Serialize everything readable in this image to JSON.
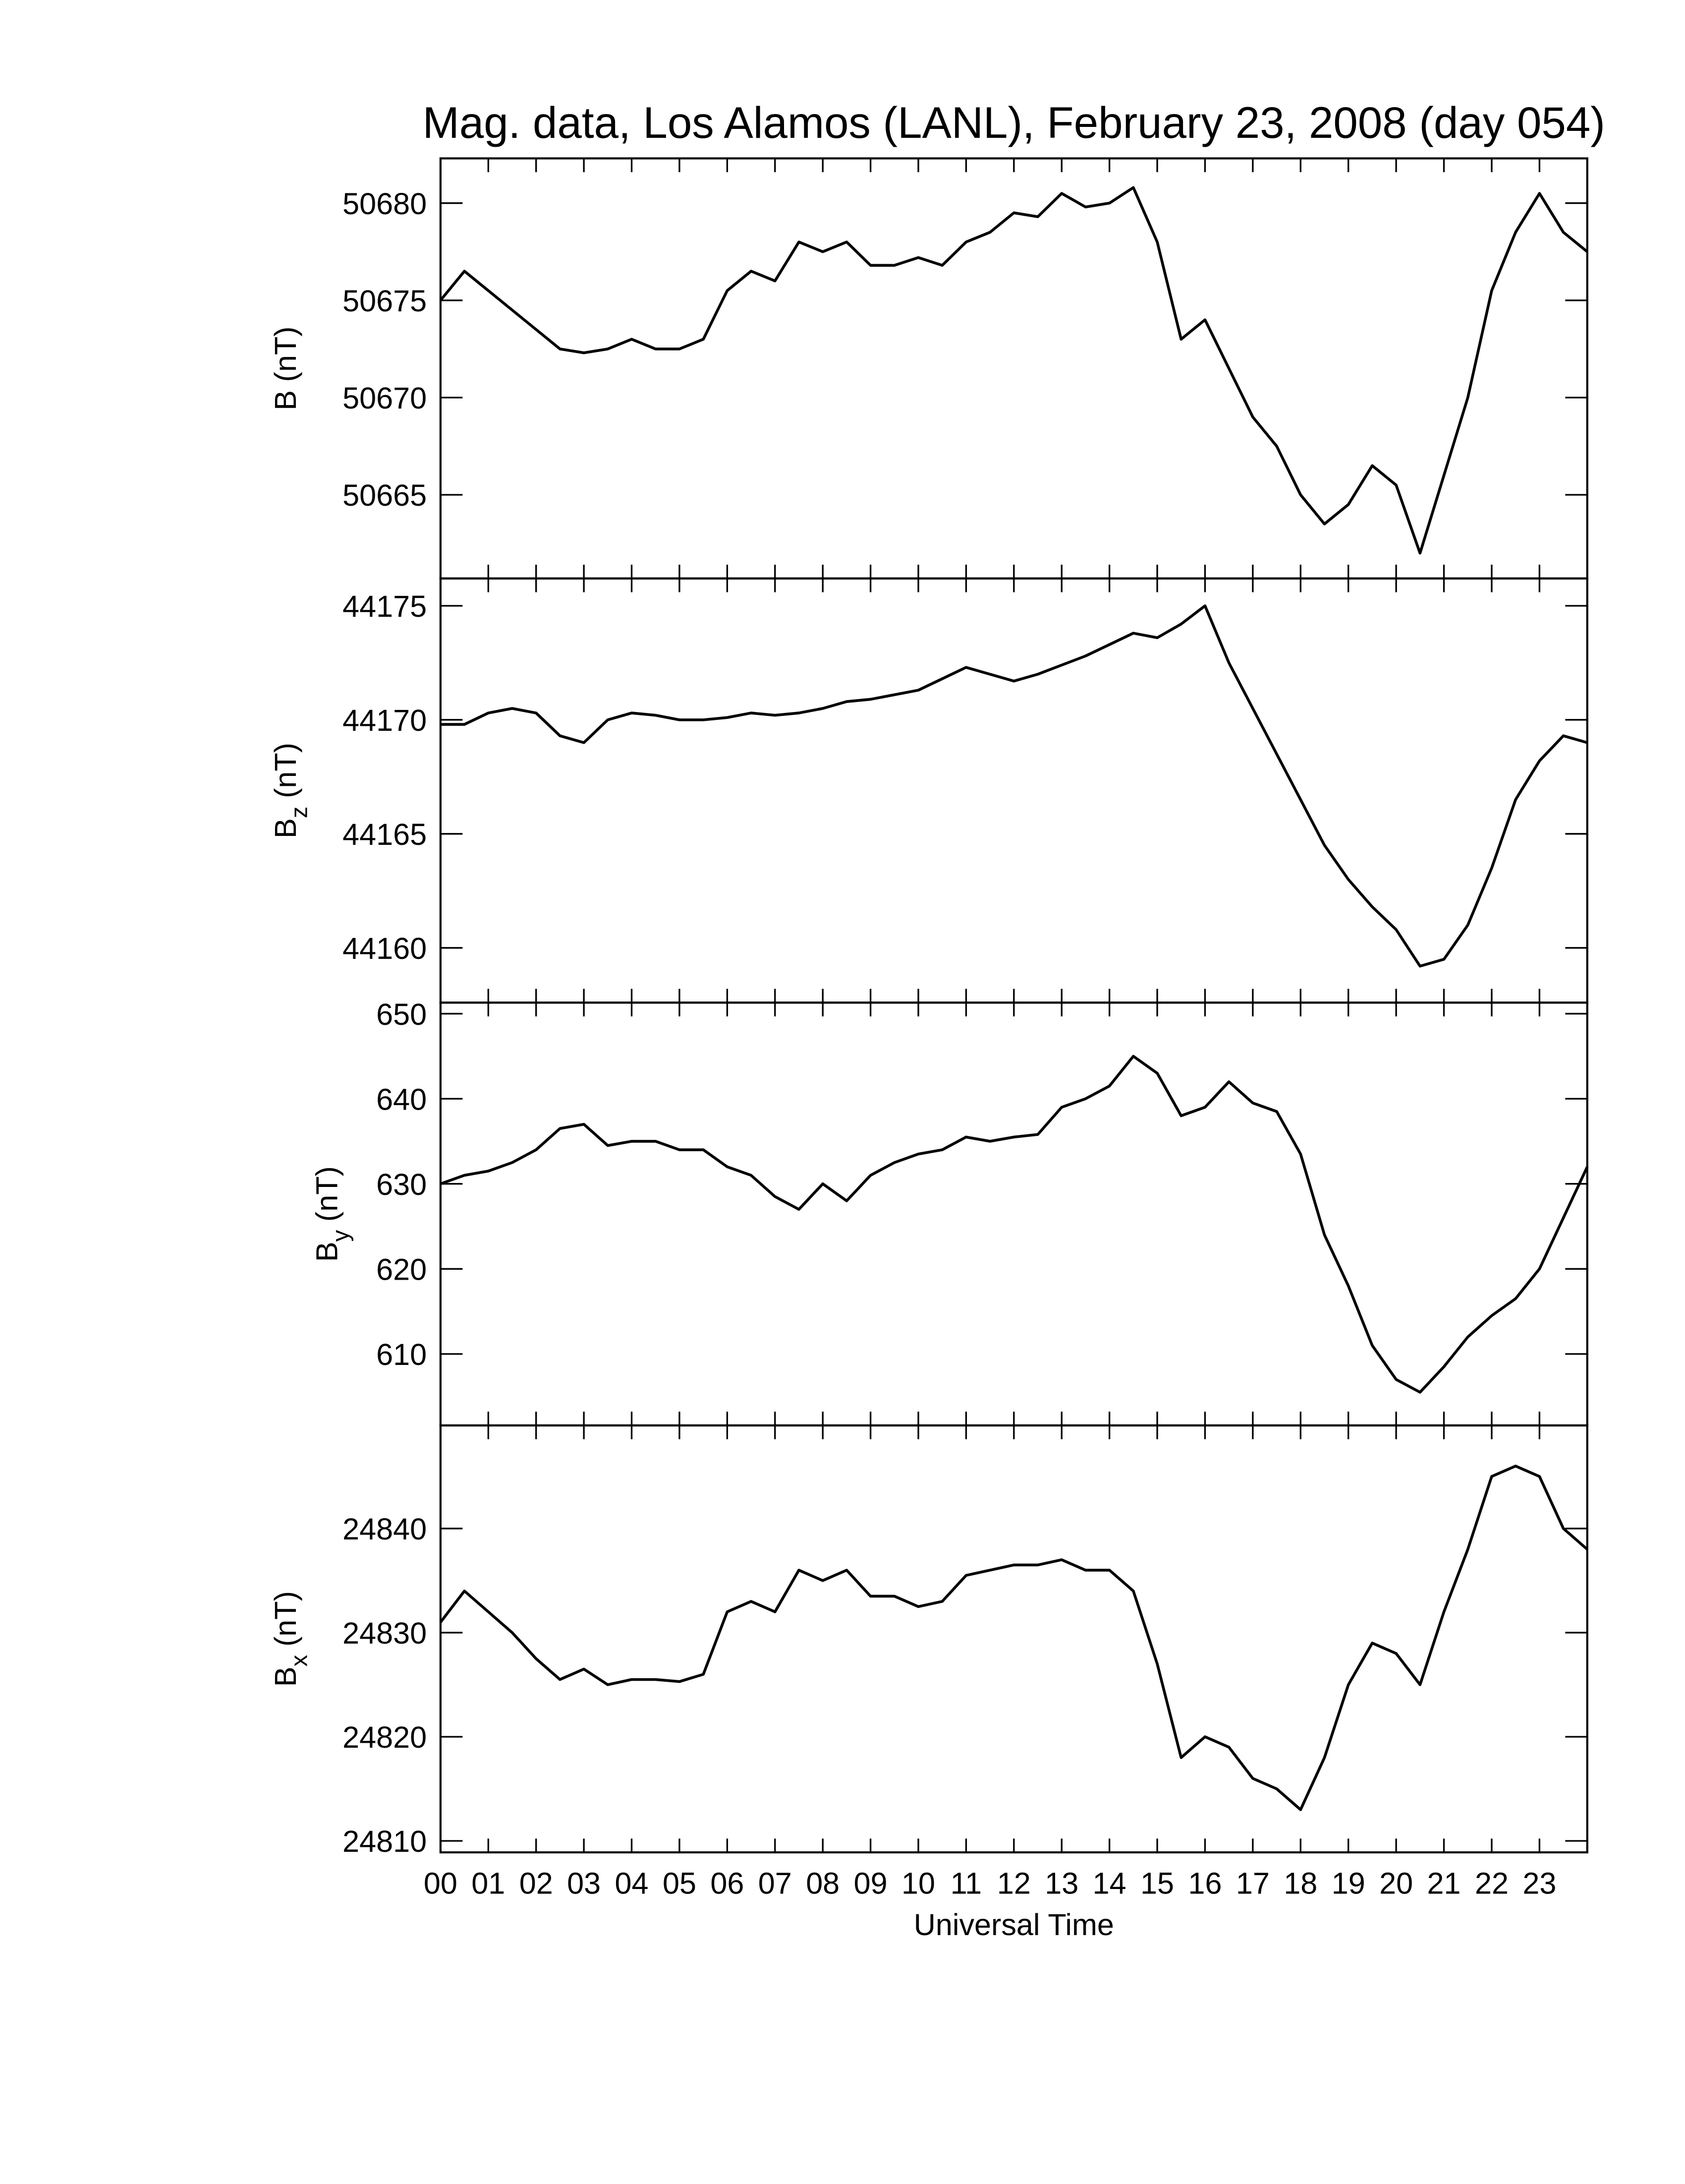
{
  "chart_data": [
    {
      "type": "line",
      "title": "Mag. data, Los Alamos (LANL), February 23, 2008 (day 054)",
      "ylabel": {
        "base": "B",
        "unit": "(nT)"
      },
      "color": "#000000",
      "x": [
        0,
        0.5,
        1,
        1.5,
        2,
        2.5,
        3,
        3.5,
        4,
        4.5,
        5,
        5.5,
        6,
        6.5,
        7,
        7.5,
        8,
        8.5,
        9,
        9.5,
        10,
        10.5,
        11,
        11.5,
        12,
        12.5,
        13,
        13.5,
        14,
        14.5,
        15,
        15.5,
        16,
        16.5,
        17,
        17.5,
        18,
        18.5,
        19,
        19.5,
        20,
        20.5,
        21,
        21.5,
        22,
        22.5,
        23,
        23.5,
        24
      ],
      "values": [
        50675,
        50676.5,
        50675.5,
        50674.5,
        50673.5,
        50672.5,
        50672.3,
        50672.5,
        50673,
        50672.5,
        50672.5,
        50673,
        50675.5,
        50676.5,
        50676,
        50678,
        50677.5,
        50678,
        50676.8,
        50676.8,
        50677.2,
        50676.8,
        50678,
        50678.5,
        50679.5,
        50679.3,
        50680.5,
        50679.8,
        50680,
        50680.8,
        50678,
        50673,
        50674,
        50671.5,
        50669,
        50667.5,
        50665,
        50663.5,
        50664.5,
        50666.5,
        50665.5,
        50662,
        50666,
        50670,
        50675.5,
        50678.5,
        50680.5,
        50678.5,
        50677.5
      ],
      "xlim": [
        0,
        24
      ],
      "xticks": [
        0,
        1,
        2,
        3,
        4,
        5,
        6,
        7,
        8,
        9,
        10,
        11,
        12,
        13,
        14,
        15,
        16,
        17,
        18,
        19,
        20,
        21,
        22,
        23
      ],
      "ylim": [
        50660.7,
        50682.3
      ],
      "yticks": [
        50665,
        50670,
        50675,
        50680
      ]
    },
    {
      "type": "line",
      "ylabel": {
        "base": "B",
        "sub": "z",
        "unit": "(nT)"
      },
      "color": "#000000",
      "x": [
        0,
        0.5,
        1,
        1.5,
        2,
        2.5,
        3,
        3.5,
        4,
        4.5,
        5,
        5.5,
        6,
        6.5,
        7,
        7.5,
        8,
        8.5,
        9,
        9.5,
        10,
        10.5,
        11,
        11.5,
        12,
        12.5,
        13,
        13.5,
        14,
        14.5,
        15,
        15.5,
        16,
        16.5,
        17,
        17.5,
        18,
        18.5,
        19,
        19.5,
        20,
        20.5,
        21,
        21.5,
        22,
        22.5,
        23,
        23.5,
        24
      ],
      "values": [
        44169.8,
        44169.8,
        44170.3,
        44170.5,
        44170.3,
        44169.3,
        44169,
        44170,
        44170.3,
        44170.2,
        44170,
        44170,
        44170.1,
        44170.3,
        44170.2,
        44170.3,
        44170.5,
        44170.8,
        44170.9,
        44171.1,
        44171.3,
        44171.8,
        44172.3,
        44172,
        44171.7,
        44172,
        44172.4,
        44172.8,
        44173.3,
        44173.8,
        44173.6,
        44174.2,
        44175,
        44172.5,
        44170.5,
        44168.5,
        44166.5,
        44164.5,
        44163,
        44161.8,
        44160.8,
        44159.2,
        44159.5,
        44161,
        44163.5,
        44166.5,
        44168.2,
        44169.3,
        44169
      ],
      "xlim": [
        0,
        24
      ],
      "xticks": [
        0,
        1,
        2,
        3,
        4,
        5,
        6,
        7,
        8,
        9,
        10,
        11,
        12,
        13,
        14,
        15,
        16,
        17,
        18,
        19,
        20,
        21,
        22,
        23
      ],
      "ylim": [
        44157.6,
        44176.2
      ],
      "yticks": [
        44160,
        44165,
        44170,
        44175
      ]
    },
    {
      "type": "line",
      "ylabel": {
        "base": "B",
        "sub": "y",
        "unit": "(nT)"
      },
      "color": "#000000",
      "x": [
        0,
        0.5,
        1,
        1.5,
        2,
        2.5,
        3,
        3.5,
        4,
        4.5,
        5,
        5.5,
        6,
        6.5,
        7,
        7.5,
        8,
        8.5,
        9,
        9.5,
        10,
        10.5,
        11,
        11.5,
        12,
        12.5,
        13,
        13.5,
        14,
        14.5,
        15,
        15.5,
        16,
        16.5,
        17,
        17.5,
        18,
        18.5,
        19,
        19.5,
        20,
        20.5,
        21,
        21.5,
        22,
        22.5,
        23,
        23.5,
        24
      ],
      "values": [
        630,
        631,
        631.5,
        632.5,
        634,
        636.5,
        637,
        634.5,
        635,
        635,
        634,
        634,
        632,
        631,
        628.5,
        627,
        630,
        628,
        631,
        632.5,
        633.5,
        634,
        635.5,
        635,
        635.5,
        635.8,
        639,
        640,
        641.5,
        645,
        643,
        638,
        639,
        642,
        639.5,
        638.5,
        633.5,
        624,
        618,
        611,
        607,
        605.5,
        608.5,
        612,
        614.5,
        616.5,
        620,
        626,
        632
      ],
      "xlim": [
        0,
        24
      ],
      "xticks": [
        0,
        1,
        2,
        3,
        4,
        5,
        6,
        7,
        8,
        9,
        10,
        11,
        12,
        13,
        14,
        15,
        16,
        17,
        18,
        19,
        20,
        21,
        22,
        23
      ],
      "ylim": [
        601.6,
        651.3
      ],
      "yticks": [
        610,
        620,
        630,
        640,
        650
      ]
    },
    {
      "type": "line",
      "xlabel": "Universal Time",
      "ylabel": {
        "base": "B",
        "sub": "x",
        "unit": "(nT)"
      },
      "color": "#000000",
      "x": [
        0,
        0.5,
        1,
        1.5,
        2,
        2.5,
        3,
        3.5,
        4,
        4.5,
        5,
        5.5,
        6,
        6.5,
        7,
        7.5,
        8,
        8.5,
        9,
        9.5,
        10,
        10.5,
        11,
        11.5,
        12,
        12.5,
        13,
        13.5,
        14,
        14.5,
        15,
        15.5,
        16,
        16.5,
        17,
        17.5,
        18,
        18.5,
        19,
        19.5,
        20,
        20.5,
        21,
        21.5,
        22,
        22.5,
        23,
        23.5,
        24
      ],
      "values": [
        24831,
        24834,
        24832,
        24830,
        24827.5,
        24825.5,
        24826.5,
        24825,
        24825.5,
        24825.5,
        24825.3,
        24826,
        24832,
        24833,
        24832,
        24836,
        24835,
        24836,
        24833.5,
        24833.5,
        24832.5,
        24833,
        24835.5,
        24836,
        24836.5,
        24836.5,
        24837,
        24836,
        24836,
        24834,
        24827,
        24818,
        24820,
        24819,
        24816,
        24815,
        24813,
        24818,
        24825,
        24829,
        24828,
        24825,
        24832,
        24838,
        24845,
        24846,
        24845,
        24840,
        24838
      ],
      "xlim": [
        0,
        24
      ],
      "xticks": [
        {
          "value": 0,
          "label": "00"
        },
        {
          "value": 1,
          "label": "01"
        },
        {
          "value": 2,
          "label": "02"
        },
        {
          "value": 3,
          "label": "03"
        },
        {
          "value": 4,
          "label": "04"
        },
        {
          "value": 5,
          "label": "05"
        },
        {
          "value": 6,
          "label": "06"
        },
        {
          "value": 7,
          "label": "07"
        },
        {
          "value": 8,
          "label": "08"
        },
        {
          "value": 9,
          "label": "09"
        },
        {
          "value": 10,
          "label": "10"
        },
        {
          "value": 11,
          "label": "11"
        },
        {
          "value": 12,
          "label": "12"
        },
        {
          "value": 13,
          "label": "13"
        },
        {
          "value": 14,
          "label": "14"
        },
        {
          "value": 15,
          "label": "15"
        },
        {
          "value": 16,
          "label": "16"
        },
        {
          "value": 17,
          "label": "17"
        },
        {
          "value": 18,
          "label": "18"
        },
        {
          "value": 19,
          "label": "19"
        },
        {
          "value": 20,
          "label": "20"
        },
        {
          "value": 21,
          "label": "21"
        },
        {
          "value": 22,
          "label": "22"
        },
        {
          "value": 23,
          "label": "23"
        }
      ],
      "ylim": [
        24808.9,
        24849.9
      ],
      "yticks": [
        24810,
        24820,
        24830,
        24840
      ]
    }
  ]
}
